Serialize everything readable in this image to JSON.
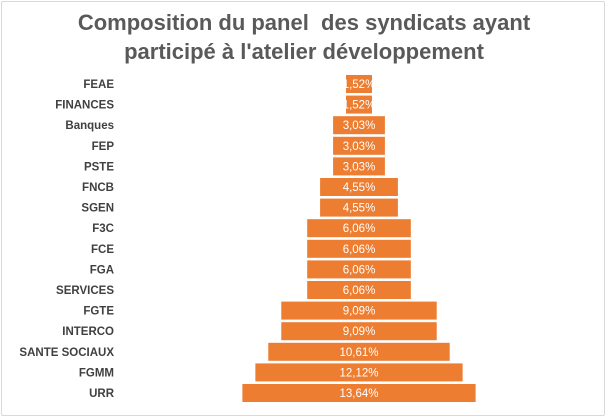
{
  "chart_data": {
    "type": "bar",
    "orientation": "horizontal-centered",
    "title_lines": [
      "Composition du panel  des syndicats ayant",
      "participé à l'atelier développement"
    ],
    "categories": [
      "FEAE",
      "FINANCES",
      "Banques",
      "FEP",
      "PSTE",
      "FNCB",
      "SGEN",
      "F3C",
      "FCE",
      "FGA",
      "SERVICES",
      "FGTE",
      "INTERCO",
      "SANTE SOCIAUX",
      "FGMM",
      "URR"
    ],
    "values": [
      1.52,
      1.52,
      3.03,
      3.03,
      3.03,
      4.55,
      4.55,
      6.06,
      6.06,
      6.06,
      6.06,
      9.09,
      9.09,
      10.61,
      12.12,
      13.64
    ],
    "data_labels": [
      "1,52%",
      "1,52%",
      "3,03%",
      "3,03%",
      "3,03%",
      "4,55%",
      "4,55%",
      "6,06%",
      "6,06%",
      "6,06%",
      "6,06%",
      "9,09%",
      "9,09%",
      "10,61%",
      "12,12%",
      "13,64%"
    ],
    "bar_color": "#ED7D31",
    "label_color": "#FFFFFF",
    "xlabel": "",
    "ylabel": "",
    "grid": false,
    "legend": "none"
  }
}
